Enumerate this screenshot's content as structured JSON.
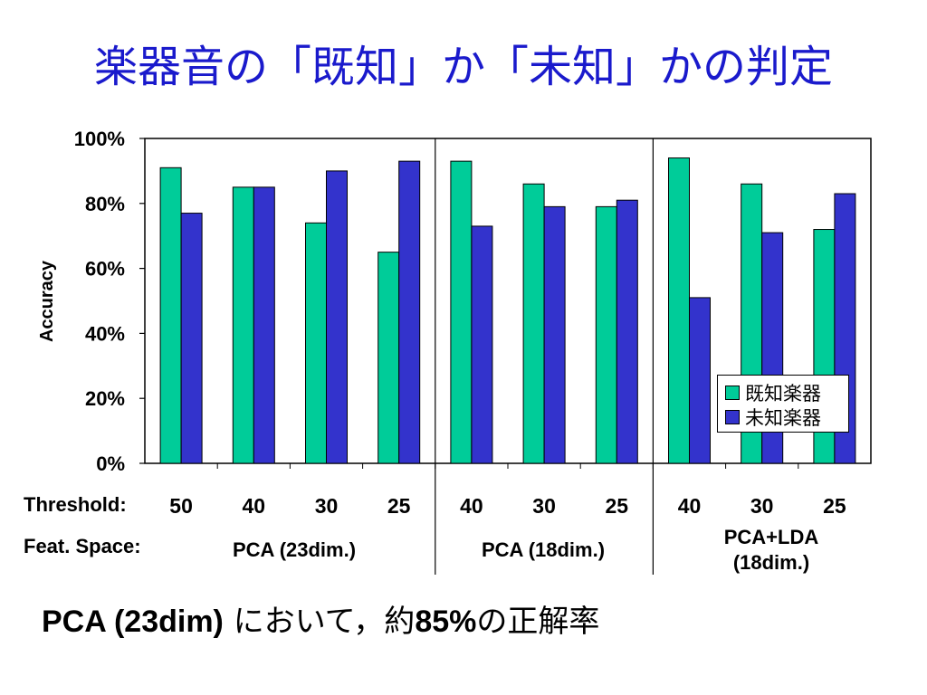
{
  "slide": {
    "title": "楽器音の「既知」か「未知」かの判定",
    "footer": {
      "lead": "PCA (23dim)",
      "middle": " において，約",
      "value": "85%",
      "tail": "の正解率"
    }
  },
  "rows": {
    "threshold_label": "Threshold:",
    "feat_label": "Feat. Space:"
  },
  "chart_data": {
    "type": "bar",
    "ylabel": "Accuracy",
    "ylim": [
      0,
      1
    ],
    "yticks": [
      "0%",
      "20%",
      "40%",
      "60%",
      "80%",
      "100%"
    ],
    "categories": [
      "50",
      "40",
      "30",
      "25",
      "40",
      "30",
      "25",
      "40",
      "30",
      "25"
    ],
    "groups": [
      {
        "label_lines": [
          "PCA (23dim.)"
        ],
        "count": 4
      },
      {
        "label_lines": [
          "PCA (18dim.)"
        ],
        "count": 3
      },
      {
        "label_lines": [
          "PCA+LDA",
          "(18dim.)"
        ],
        "count": 3
      }
    ],
    "series": [
      {
        "name": "既知楽器",
        "color": "#00cc99",
        "values": [
          0.91,
          0.85,
          0.74,
          0.65,
          0.93,
          0.86,
          0.79,
          0.94,
          0.86,
          0.72
        ]
      },
      {
        "name": "未知楽器",
        "color": "#3333cc",
        "values": [
          0.77,
          0.85,
          0.9,
          0.93,
          0.73,
          0.79,
          0.81,
          0.51,
          0.71,
          0.83
        ]
      }
    ],
    "legend_position": "bottom-right inside plot",
    "grid": false
  }
}
